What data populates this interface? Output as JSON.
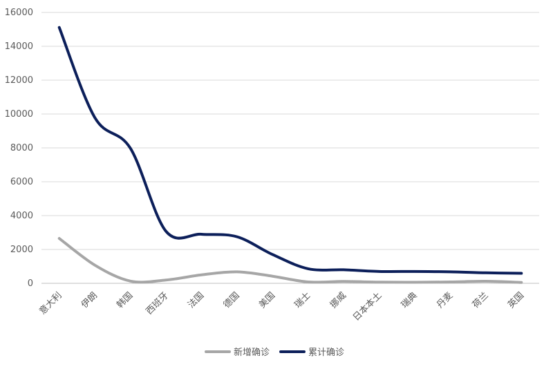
{
  "chart_data": {
    "type": "line",
    "title": "",
    "xlabel": "",
    "ylabel": "",
    "ylim": [
      0,
      16000
    ],
    "yticks": [
      0,
      2000,
      4000,
      6000,
      8000,
      10000,
      12000,
      14000,
      16000
    ],
    "grid": true,
    "legend": "bottom",
    "categories": [
      "意大利",
      "伊朗",
      "韩国",
      "西班牙",
      "法国",
      "德国",
      "美国",
      "瑞士",
      "挪威",
      "日本本土",
      "瑞典",
      "丹麦",
      "荷兰",
      "英国"
    ],
    "series": [
      {
        "name": "新增确诊",
        "color": "#a6a6a6",
        "values": [
          2651,
          1075,
          131,
          192,
          500,
          680,
          420,
          80,
          110,
          70,
          60,
          80,
          120,
          50
        ]
      },
      {
        "name": "累计确诊",
        "color": "#0c1f5a",
        "values": [
          15113,
          9790,
          7980,
          3080,
          2900,
          2750,
          1700,
          860,
          800,
          700,
          700,
          680,
          620,
          590
        ]
      }
    ]
  }
}
